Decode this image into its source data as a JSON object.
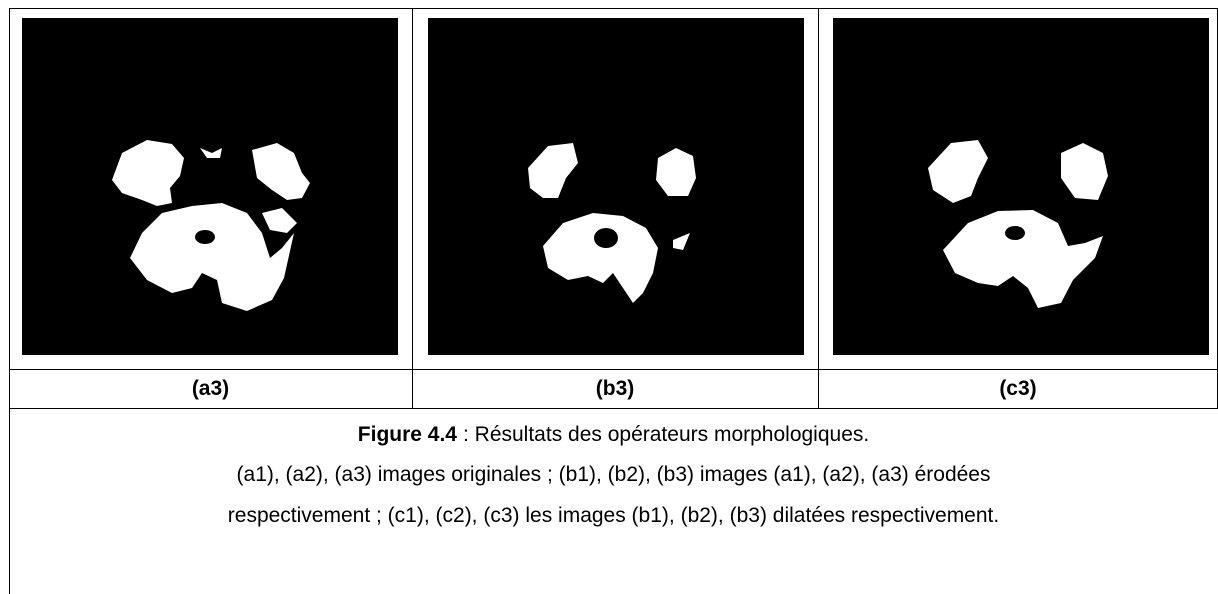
{
  "figure": {
    "cells": [
      {
        "label": "(a3)"
      },
      {
        "label": "(b3)"
      },
      {
        "label": "(c3)"
      }
    ],
    "caption": {
      "figure_label": "Figure 4.4",
      "title": ": Résultats des opérateurs morphologiques.",
      "lines": [
        "(a1), (a2), (a3) images originales ; (b1), (b2), (b3) images (a1), (a2), (a3) érodées",
        "respectivement ; (c1), (c2), (c3) les images (b1), (b2), (b3) dilatées respectivement."
      ]
    }
  }
}
